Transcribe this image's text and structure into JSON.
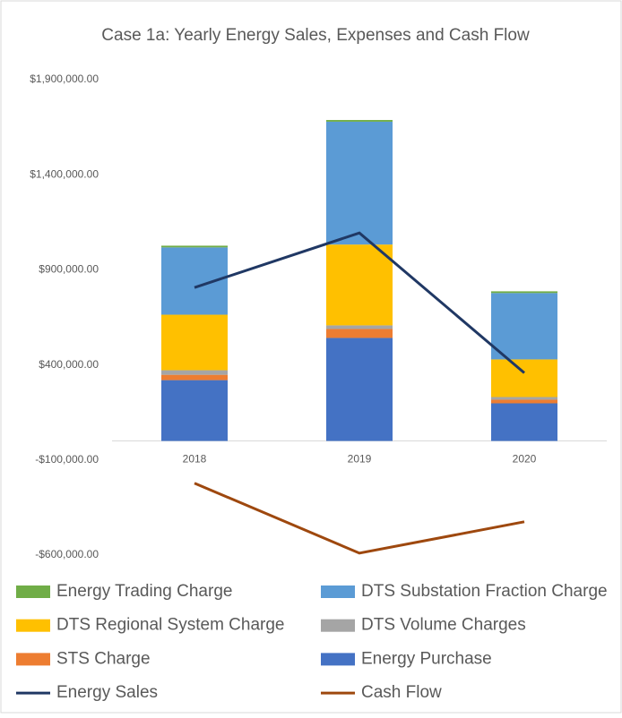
{
  "chart_data": {
    "type": "bar",
    "stacked": true,
    "title": "Case 1a: Yearly Energy Sales, Expenses and Cash Flow",
    "categories": [
      "2018",
      "2019",
      "2020"
    ],
    "series": [
      {
        "name": "Energy Purchase",
        "color": "#4472c4",
        "values": [
          320000,
          542000,
          198000
        ]
      },
      {
        "name": "STS Charge",
        "color": "#ed7d31",
        "values": [
          28000,
          47000,
          19000
        ]
      },
      {
        "name": "DTS Volume Charges",
        "color": "#a5a5a5",
        "values": [
          24000,
          19000,
          14000
        ]
      },
      {
        "name": "DTS Regional System Charge",
        "color": "#ffc000",
        "values": [
          292000,
          425000,
          198000
        ]
      },
      {
        "name": "DTS Substation Fraction Charge",
        "color": "#5b9bd5",
        "values": [
          354000,
          646000,
          349000
        ]
      },
      {
        "name": "Energy Trading Charge",
        "color": "#70ad47",
        "values": [
          9000,
          9000,
          9000
        ]
      },
      {
        "name": "Energy Sales",
        "type": "line",
        "color": "#203864",
        "values": [
          807000,
          1094000,
          358000
        ]
      },
      {
        "name": "Cash Flow",
        "type": "line",
        "color": "#9e480e",
        "values": [
          -222000,
          -590000,
          -425000
        ]
      }
    ],
    "ylim": [
      -600000,
      1900000
    ],
    "yticks": [
      {
        "value": -600000,
        "label": "-$600,000.00"
      },
      {
        "value": -100000,
        "label": "-$100,000.00"
      },
      {
        "value": 400000,
        "label": "$400,000.00"
      },
      {
        "value": 900000,
        "label": "$900,000.00"
      },
      {
        "value": 1400000,
        "label": "$1,400,000.00"
      },
      {
        "value": 1900000,
        "label": "$1,900,000.00"
      }
    ],
    "grid": false,
    "legend": "bottom"
  }
}
